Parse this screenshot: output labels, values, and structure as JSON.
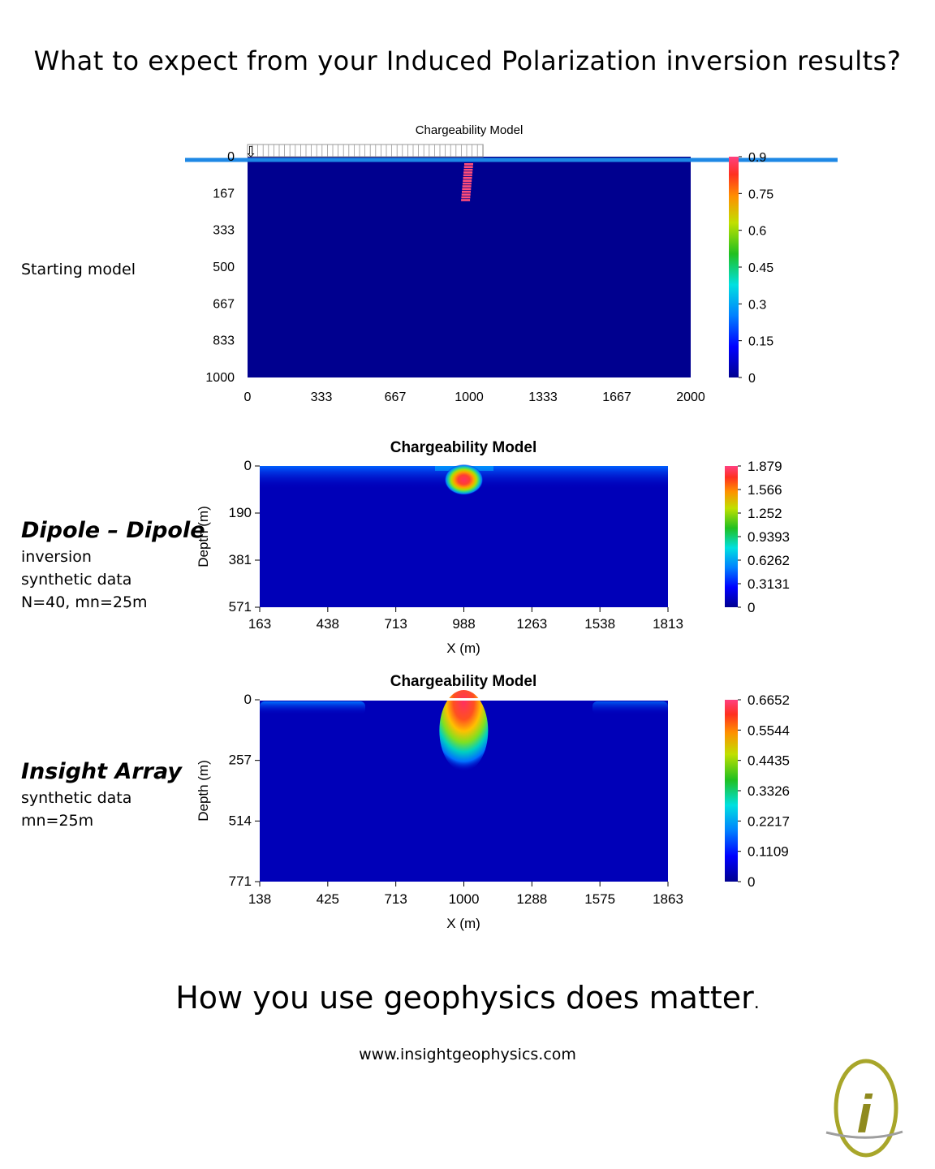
{
  "page": {
    "title": "What to expect from your Induced Polarization inversion results?",
    "tagline": "How you use geophysics does matter",
    "tagline_dot": ".",
    "website": "www.insightgeophysics.com",
    "logo_letter": "i"
  },
  "panels": [
    {
      "label_bold": "",
      "label_lines": [
        "Starting model"
      ]
    },
    {
      "label_bold": "Dipole – Dipole",
      "label_lines": [
        "inversion",
        "synthetic data",
        "N=40, mn=25m"
      ]
    },
    {
      "label_bold": "Insight Array",
      "label_lines": [
        "synthetic data",
        "mn=25m"
      ]
    }
  ],
  "colors": {
    "background_model": "#00008f",
    "surface_line": "#1e88e5",
    "anomaly_peak": "#ff3060"
  },
  "chart_data": [
    {
      "type": "heatmap",
      "title": "Chargeability Model",
      "xlabel": "",
      "ylabel": "",
      "xlim": [
        0,
        2000
      ],
      "ylim": [
        0,
        1000
      ],
      "x_ticks": [
        "0",
        "333",
        "667",
        "1000",
        "1333",
        "1667",
        "2000"
      ],
      "y_ticks": [
        "0",
        "167",
        "333",
        "500",
        "667",
        "833",
        "1000"
      ],
      "colorbar_ticks": [
        "0.9",
        "0.75",
        "0.6",
        "0.45",
        "0.3",
        "0.15",
        "0"
      ],
      "colorbar_range": [
        0,
        0.9
      ],
      "background_value": 0,
      "anomalies": [
        {
          "x": 1000,
          "depth": 90,
          "value": 0.9,
          "shape": "thin inclined dike"
        }
      ],
      "electrodes": {
        "x_start": 0,
        "x_end": 1063
      }
    },
    {
      "type": "heatmap",
      "title": "Chargeability Model",
      "xlabel": "X (m)",
      "ylabel": "Depth (m)",
      "xlim": [
        163,
        1813
      ],
      "ylim": [
        0,
        571
      ],
      "x_ticks": [
        "163",
        "438",
        "713",
        "988",
        "1263",
        "1538",
        "1813"
      ],
      "y_ticks": [
        "0",
        "190",
        "381",
        "571"
      ],
      "colorbar_ticks": [
        "1.879",
        "1.566",
        "1.252",
        "0.9393",
        "0.6262",
        "0.3131",
        "0"
      ],
      "colorbar_range": [
        0,
        1.879
      ],
      "background_value": 0.05,
      "anomalies": [
        {
          "x": 988,
          "depth": 75,
          "value": 1.879,
          "shape": "compact blob"
        }
      ]
    },
    {
      "type": "heatmap",
      "title": "Chargeability Model",
      "xlabel": "X (m)",
      "ylabel": "Depth (m)",
      "xlim": [
        138,
        1863
      ],
      "ylim": [
        0,
        771
      ],
      "x_ticks": [
        "138",
        "425",
        "713",
        "1000",
        "1288",
        "1575",
        "1863"
      ],
      "y_ticks": [
        "0",
        "257",
        "514",
        "771"
      ],
      "colorbar_ticks": [
        "0.6652",
        "0.5544",
        "0.4435",
        "0.3326",
        "0.2217",
        "0.1109",
        "0"
      ],
      "colorbar_range": [
        0,
        0.6652
      ],
      "background_value": 0.02,
      "anomalies": [
        {
          "x": 1000,
          "depth": 60,
          "value": 0.6652,
          "shape": "vertical plume from surface"
        }
      ]
    }
  ]
}
